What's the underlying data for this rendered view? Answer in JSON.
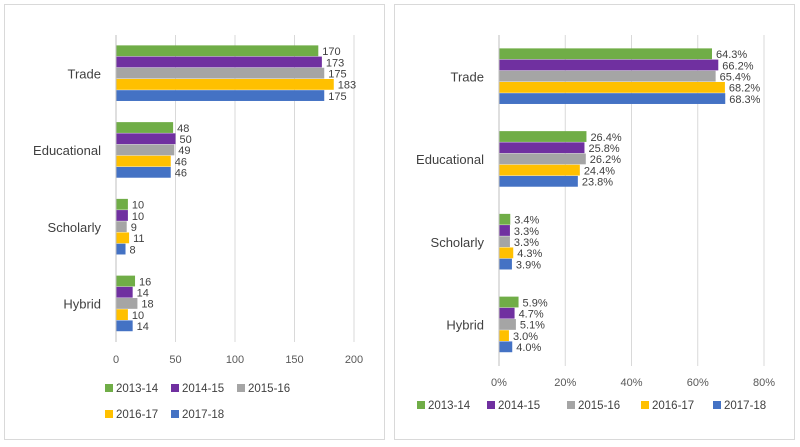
{
  "chart_data": [
    {
      "type": "bar",
      "orientation": "horizontal",
      "categories": [
        "Trade",
        "Educational",
        "Scholarly",
        "Hybrid"
      ],
      "series": [
        {
          "name": "2013-14",
          "color": "#70ad47",
          "values": [
            170,
            48,
            10,
            16
          ]
        },
        {
          "name": "2014-15",
          "color": "#7030a0",
          "values": [
            173,
            50,
            10,
            14
          ]
        },
        {
          "name": "2015-16",
          "color": "#a5a5a5",
          "values": [
            175,
            49,
            9,
            18
          ]
        },
        {
          "name": "2016-17",
          "color": "#ffc000",
          "values": [
            183,
            46,
            11,
            10
          ]
        },
        {
          "name": "2017-18",
          "color": "#4472c4",
          "values": [
            175,
            46,
            8,
            14
          ]
        }
      ],
      "xlim": [
        0,
        200
      ],
      "xticks": [
        0,
        50,
        100,
        150,
        200
      ],
      "tick_labels": [
        "0",
        "50",
        "100",
        "150",
        "200"
      ],
      "value_labels": [
        [
          "170",
          "48",
          "10",
          "16"
        ],
        [
          "173",
          "50",
          "10",
          "14"
        ],
        [
          "175",
          "49",
          "9",
          "18"
        ],
        [
          "183",
          "46",
          "11",
          "10"
        ],
        [
          "175",
          "46",
          "8",
          "14"
        ]
      ],
      "grid": true,
      "legend": "bottom"
    },
    {
      "type": "bar",
      "orientation": "horizontal",
      "categories": [
        "Trade",
        "Educational",
        "Scholarly",
        "Hybrid"
      ],
      "series": [
        {
          "name": "2013-14",
          "color": "#70ad47",
          "values": [
            64.3,
            26.4,
            3.4,
            5.9
          ]
        },
        {
          "name": "2014-15",
          "color": "#7030a0",
          "values": [
            66.2,
            25.8,
            3.3,
            4.7
          ]
        },
        {
          "name": "2015-16",
          "color": "#a5a5a5",
          "values": [
            65.4,
            26.2,
            3.3,
            5.1
          ]
        },
        {
          "name": "2016-17",
          "color": "#ffc000",
          "values": [
            68.2,
            24.4,
            4.3,
            3.0
          ]
        },
        {
          "name": "2017-18",
          "color": "#4472c4",
          "values": [
            68.3,
            23.8,
            3.9,
            4.0
          ]
        }
      ],
      "xlim": [
        0,
        80
      ],
      "xticks": [
        0,
        20,
        40,
        60,
        80
      ],
      "tick_labels": [
        "0%",
        "20%",
        "40%",
        "60%",
        "80%"
      ],
      "value_labels": [
        [
          "64.3%",
          "26.4%",
          "3.4%",
          "5.9%"
        ],
        [
          "66.2%",
          "25.8%",
          "3.3%",
          "4.7%"
        ],
        [
          "65.4%",
          "26.2%",
          "3.3%",
          "5.1%"
        ],
        [
          "68.2%",
          "24.4%",
          "4.3%",
          "3.0%"
        ],
        [
          "68.3%",
          "23.8%",
          "3.9%",
          "4.0%"
        ]
      ],
      "grid": true,
      "legend": "bottom"
    }
  ]
}
